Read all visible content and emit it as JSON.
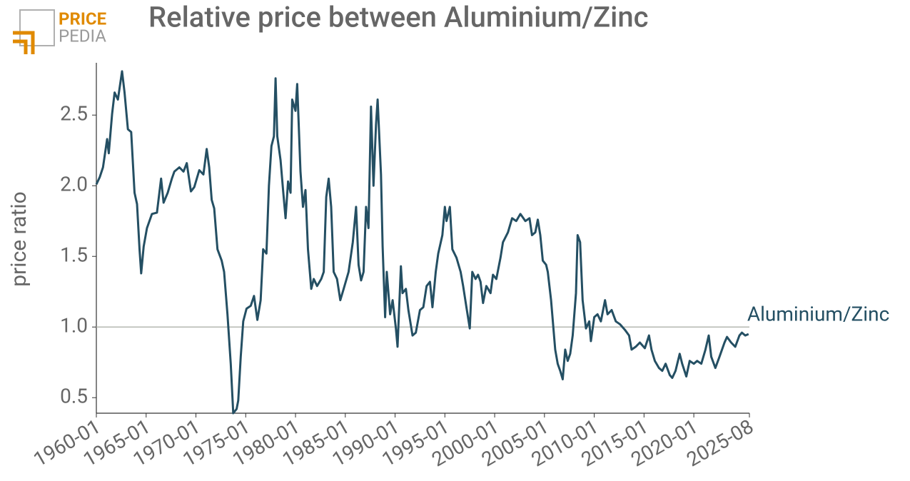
{
  "logo": {
    "top": "PRICE",
    "bottom": "PEDIA"
  },
  "chart_data": {
    "type": "line",
    "title": "Relative price between Aluminium/Zinc",
    "y_label": "price ratio",
    "x": [
      "1960-01",
      "1960-05",
      "1960-09",
      "1961-02",
      "1961-04",
      "1961-08",
      "1961-11",
      "1962-03",
      "1962-08",
      "1962-11",
      "1963-03",
      "1963-07",
      "1963-11",
      "1964-02",
      "1964-05",
      "1964-07",
      "1964-10",
      "1965-02",
      "1965-08",
      "1966-02",
      "1966-07",
      "1966-10",
      "1967-03",
      "1967-08",
      "1967-11",
      "1968-05",
      "1968-10",
      "1969-02",
      "1969-07",
      "1969-11",
      "1970-05",
      "1970-10",
      "1971-02",
      "1971-05",
      "1971-08",
      "1971-11",
      "1972-03",
      "1972-08",
      "1972-11",
      "1973-03",
      "1973-07",
      "1973-10",
      "1974-02",
      "1974-04",
      "1974-07",
      "1974-10",
      "1975-02",
      "1975-07",
      "1975-11",
      "1976-03",
      "1976-07",
      "1976-10",
      "1977-02",
      "1977-05",
      "1977-08",
      "1977-11",
      "1978-01",
      "1978-03",
      "1978-07",
      "1978-10",
      "1979-01",
      "1979-04",
      "1979-07",
      "1979-09",
      "1980-01",
      "1980-03",
      "1980-07",
      "1980-10",
      "1981-01",
      "1981-04",
      "1981-08",
      "1981-11",
      "1982-03",
      "1982-08",
      "1982-11",
      "1983-02",
      "1983-05",
      "1983-08",
      "1983-11",
      "1984-03",
      "1984-07",
      "1984-11",
      "1985-05",
      "1985-10",
      "1986-02",
      "1986-05",
      "1986-08",
      "1986-11",
      "1987-02",
      "1987-05",
      "1987-08",
      "1987-11",
      "1988-02",
      "1988-04",
      "1988-08",
      "1988-10",
      "1989-01",
      "1989-03",
      "1989-07",
      "1989-10",
      "1990-02",
      "1990-04",
      "1990-08",
      "1990-10",
      "1991-02",
      "1991-05",
      "1991-10",
      "1992-02",
      "1992-07",
      "1992-11",
      "1993-03",
      "1993-07",
      "1993-10",
      "1994-02",
      "1994-05",
      "1994-10",
      "1995-01",
      "1995-03",
      "1995-07",
      "1995-10",
      "1996-03",
      "1996-08",
      "1996-11",
      "1997-03",
      "1997-07",
      "1997-10",
      "1998-02",
      "1998-05",
      "1998-08",
      "1998-11",
      "1999-03",
      "1999-08",
      "1999-11",
      "2000-03",
      "2000-08",
      "2000-11",
      "2001-05",
      "2001-10",
      "2002-03",
      "2002-08",
      "2003-02",
      "2003-07",
      "2003-10",
      "2004-02",
      "2004-05",
      "2004-08",
      "2004-11",
      "2005-03",
      "2005-05",
      "2005-09",
      "2006-02",
      "2006-05",
      "2006-08",
      "2006-11",
      "2007-02",
      "2007-05",
      "2007-08",
      "2007-11",
      "2008-03",
      "2008-05",
      "2008-08",
      "2008-11",
      "2009-03",
      "2009-07",
      "2009-09",
      "2010-01",
      "2010-05",
      "2010-09",
      "2011-02",
      "2011-05",
      "2011-10",
      "2012-03",
      "2012-08",
      "2013-02",
      "2013-07",
      "2013-10",
      "2014-03",
      "2014-08",
      "2015-02",
      "2015-07",
      "2015-10",
      "2016-02",
      "2016-07",
      "2016-11",
      "2017-03",
      "2017-08",
      "2017-11",
      "2018-03",
      "2018-08",
      "2018-11",
      "2019-04",
      "2019-08",
      "2020-01",
      "2020-05",
      "2020-10",
      "2021-03",
      "2021-07",
      "2021-10",
      "2022-03",
      "2022-08",
      "2023-02",
      "2023-05",
      "2023-10",
      "2024-03",
      "2024-08",
      "2024-11",
      "2025-03",
      "2025-07"
    ],
    "series": [
      {
        "name": "Aluminium/Zinc",
        "color": "#244f63",
        "values": [
          2.01,
          2.06,
          2.13,
          2.33,
          2.23,
          2.51,
          2.66,
          2.61,
          2.81,
          2.66,
          2.4,
          2.38,
          1.95,
          1.87,
          1.55,
          1.38,
          1.57,
          1.7,
          1.8,
          1.81,
          2.05,
          1.88,
          1.95,
          2.05,
          2.1,
          2.13,
          2.1,
          2.16,
          1.96,
          1.99,
          2.11,
          2.08,
          2.26,
          2.13,
          1.9,
          1.84,
          1.55,
          1.47,
          1.39,
          1.09,
          0.74,
          0.39,
          0.42,
          0.48,
          0.79,
          1.04,
          1.13,
          1.15,
          1.22,
          1.05,
          1.19,
          1.55,
          1.52,
          2.0,
          2.28,
          2.35,
          2.76,
          2.35,
          2.18,
          1.97,
          1.77,
          2.03,
          1.95,
          2.61,
          2.53,
          2.72,
          2.1,
          1.85,
          1.97,
          1.55,
          1.27,
          1.34,
          1.29,
          1.34,
          1.39,
          1.92,
          2.05,
          1.85,
          1.39,
          1.34,
          1.19,
          1.27,
          1.39,
          1.6,
          1.85,
          1.44,
          1.33,
          1.39,
          1.85,
          1.7,
          2.56,
          2.0,
          2.43,
          2.61,
          2.08,
          1.57,
          1.07,
          1.39,
          1.09,
          1.19,
          0.99,
          0.86,
          1.43,
          1.24,
          1.27,
          1.12,
          0.94,
          0.96,
          1.12,
          1.14,
          1.29,
          1.32,
          1.14,
          1.39,
          1.52,
          1.65,
          1.85,
          1.75,
          1.85,
          1.55,
          1.49,
          1.39,
          1.29,
          1.14,
          0.99,
          1.39,
          1.34,
          1.37,
          1.32,
          1.17,
          1.29,
          1.24,
          1.37,
          1.34,
          1.49,
          1.6,
          1.67,
          1.77,
          1.75,
          1.8,
          1.75,
          1.77,
          1.65,
          1.67,
          1.76,
          1.65,
          1.47,
          1.44,
          1.39,
          1.19,
          0.84,
          0.74,
          0.69,
          0.63,
          0.84,
          0.76,
          0.81,
          0.94,
          1.24,
          1.65,
          1.6,
          1.19,
          0.99,
          1.04,
          0.9,
          1.07,
          1.09,
          1.04,
          1.19,
          1.09,
          1.12,
          1.04,
          1.02,
          0.98,
          0.94,
          0.84,
          0.86,
          0.89,
          0.85,
          0.94,
          0.84,
          0.76,
          0.71,
          0.69,
          0.74,
          0.66,
          0.64,
          0.69,
          0.81,
          0.74,
          0.65,
          0.76,
          0.74,
          0.76,
          0.74,
          0.84,
          0.94,
          0.79,
          0.71,
          0.79,
          0.89,
          0.93,
          0.89,
          0.86,
          0.94,
          0.96,
          0.94,
          0.95
        ]
      }
    ],
    "xlim": [
      "1960-01",
      "2025-08"
    ],
    "xticks": [
      "1960-01",
      "1965-01",
      "1970-01",
      "1975-01",
      "1980-01",
      "1985-01",
      "1990-01",
      "1995-01",
      "2000-01",
      "2005-01",
      "2010-01",
      "2015-01",
      "2020-01",
      "2025-08"
    ],
    "ylim": [
      0.39,
      2.87
    ],
    "yticks": [
      0.5,
      {
        "value": 1,
        "label": "1.0"
      },
      1.5,
      {
        "value": 2,
        "label": "2.0"
      },
      2.5
    ],
    "reference_line": 1,
    "reference_color": "#b4b8b0"
  }
}
